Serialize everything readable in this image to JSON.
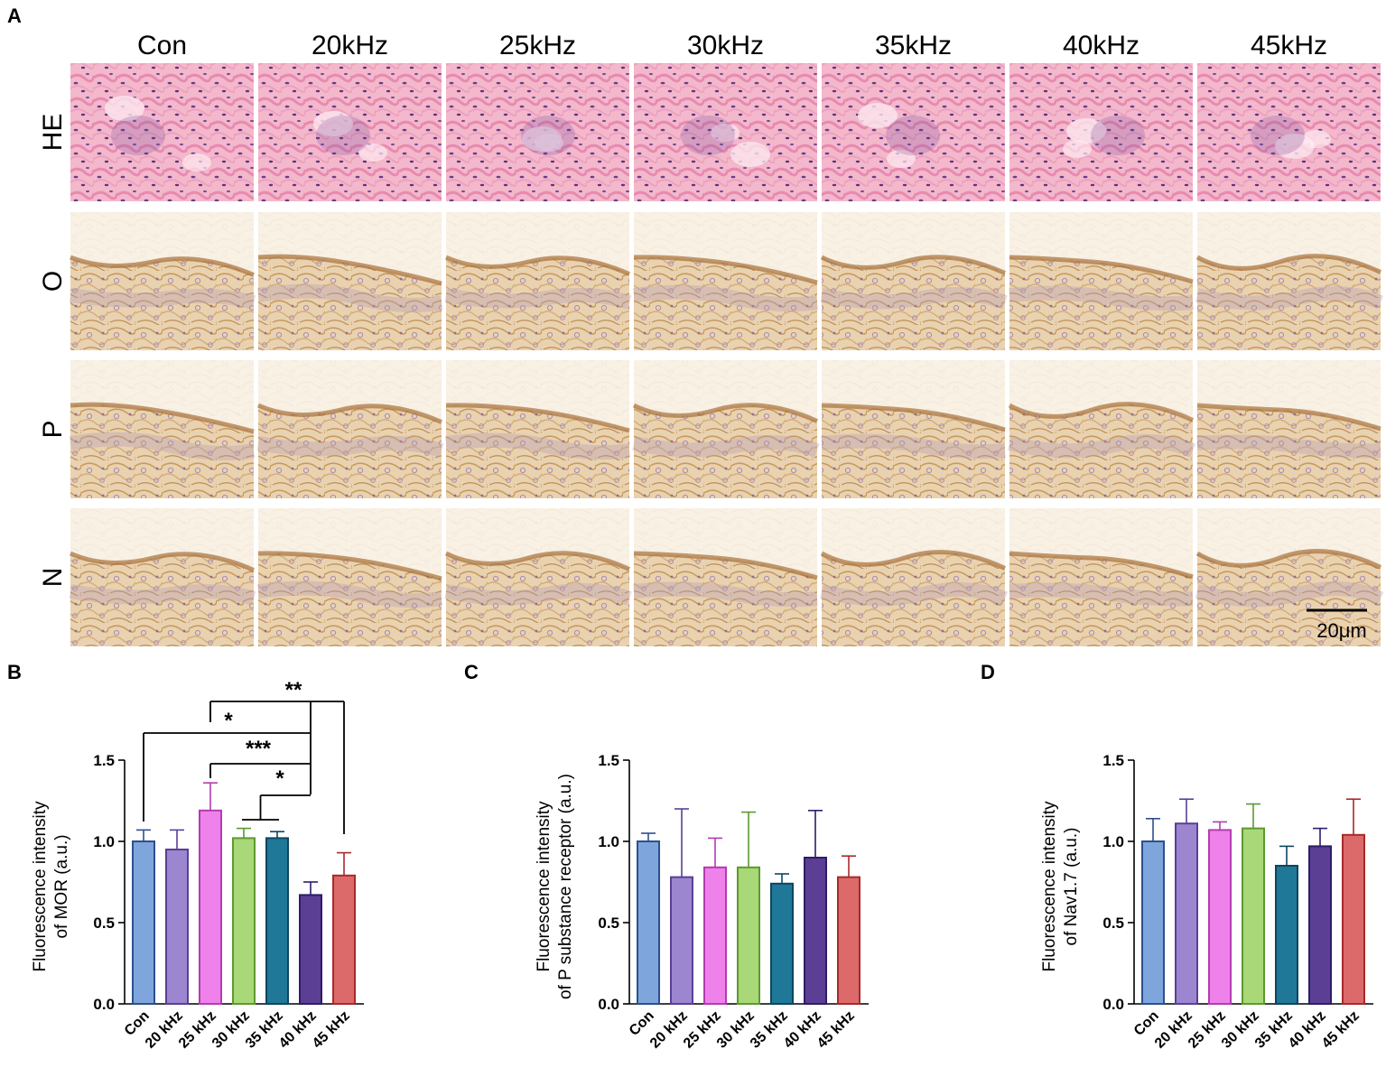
{
  "figure": {
    "panel_letters": [
      "A",
      "B",
      "C",
      "D"
    ],
    "columns": [
      "Con",
      "20kHz",
      "25kHz",
      "30kHz",
      "35kHz",
      "40kHz",
      "45kHz"
    ],
    "rows": [
      "HE",
      "O",
      "P",
      "N"
    ],
    "scale_bar": "20μm"
  },
  "chart_data": [
    {
      "type": "bar",
      "panel": "B",
      "categories": [
        "Con",
        "20 kHz",
        "25 kHz",
        "30 kHz",
        "35 kHz",
        "40 kHz",
        "45 kHz"
      ],
      "values": [
        1.0,
        0.95,
        1.19,
        1.02,
        1.02,
        0.67,
        0.79
      ],
      "errors": [
        0.07,
        0.12,
        0.17,
        0.06,
        0.04,
        0.08,
        0.14
      ],
      "ylabel_line1": "Fluorescence intensity",
      "ylabel_line2": "of  MOR (a.u.)",
      "ylim": [
        0,
        1.5
      ],
      "yticks": [
        "0.0",
        "0.5",
        "1.0",
        "1.5"
      ],
      "significance": [
        {
          "from": 2,
          "to": 6,
          "label": "**"
        },
        {
          "from": 2,
          "to": 5,
          "label": "*"
        },
        {
          "from": 0,
          "to": 5,
          "label": "***"
        },
        {
          "from": 2,
          "to": 5,
          "label": "*"
        },
        {
          "from": 3.5,
          "to": 5,
          "label": ""
        }
      ],
      "colors": [
        "#7ea6dc",
        "#9b86cf",
        "#ee82ea",
        "#a8d878",
        "#1f7897",
        "#5a3f95",
        "#dc6a6a"
      ],
      "edge_colors": [
        "#2c4f8e",
        "#5a3f95",
        "#b43bb0",
        "#5c9a2e",
        "#0c4660",
        "#2f1c66",
        "#a82a2a"
      ]
    },
    {
      "type": "bar",
      "panel": "C",
      "categories": [
        "Con",
        "20 kHz",
        "25 kHz",
        "30 kHz",
        "35 kHz",
        "40 kHz",
        "45 kHz"
      ],
      "values": [
        1.0,
        0.78,
        0.84,
        0.84,
        0.74,
        0.9,
        0.78
      ],
      "errors": [
        0.05,
        0.42,
        0.18,
        0.34,
        0.06,
        0.29,
        0.13
      ],
      "ylabel_line1": "Fluorescence intensity",
      "ylabel_line2": "of  P substance receptor (a.u.)",
      "ylim": [
        0,
        1.5
      ],
      "yticks": [
        "0.0",
        "0.5",
        "1.0",
        "1.5"
      ],
      "colors": [
        "#7ea6dc",
        "#9b86cf",
        "#ee82ea",
        "#a8d878",
        "#1f7897",
        "#5a3f95",
        "#dc6a6a"
      ],
      "edge_colors": [
        "#2c4f8e",
        "#5a3f95",
        "#b43bb0",
        "#5c9a2e",
        "#0c4660",
        "#2f1c66",
        "#a82a2a"
      ]
    },
    {
      "type": "bar",
      "panel": "D",
      "categories": [
        "Con",
        "20 kHz",
        "25 kHz",
        "30 kHz",
        "35 kHz",
        "40 kHz",
        "45 kHz"
      ],
      "values": [
        1.0,
        1.11,
        1.07,
        1.08,
        0.85,
        0.97,
        1.04
      ],
      "errors": [
        0.14,
        0.15,
        0.05,
        0.15,
        0.12,
        0.11,
        0.22
      ],
      "ylabel_line1": "Fluorescence intensity",
      "ylabel_line2": "of Nav1.7 (a.u.)",
      "ylim": [
        0,
        1.5
      ],
      "yticks": [
        "0.0",
        "0.5",
        "1.0",
        "1.5"
      ],
      "colors": [
        "#7ea6dc",
        "#9b86cf",
        "#ee82ea",
        "#a8d878",
        "#1f7897",
        "#5a3f95",
        "#dc6a6a"
      ],
      "edge_colors": [
        "#2c4f8e",
        "#5a3f95",
        "#b43bb0",
        "#5c9a2e",
        "#0c4660",
        "#2f1c66",
        "#a82a2a"
      ]
    }
  ]
}
